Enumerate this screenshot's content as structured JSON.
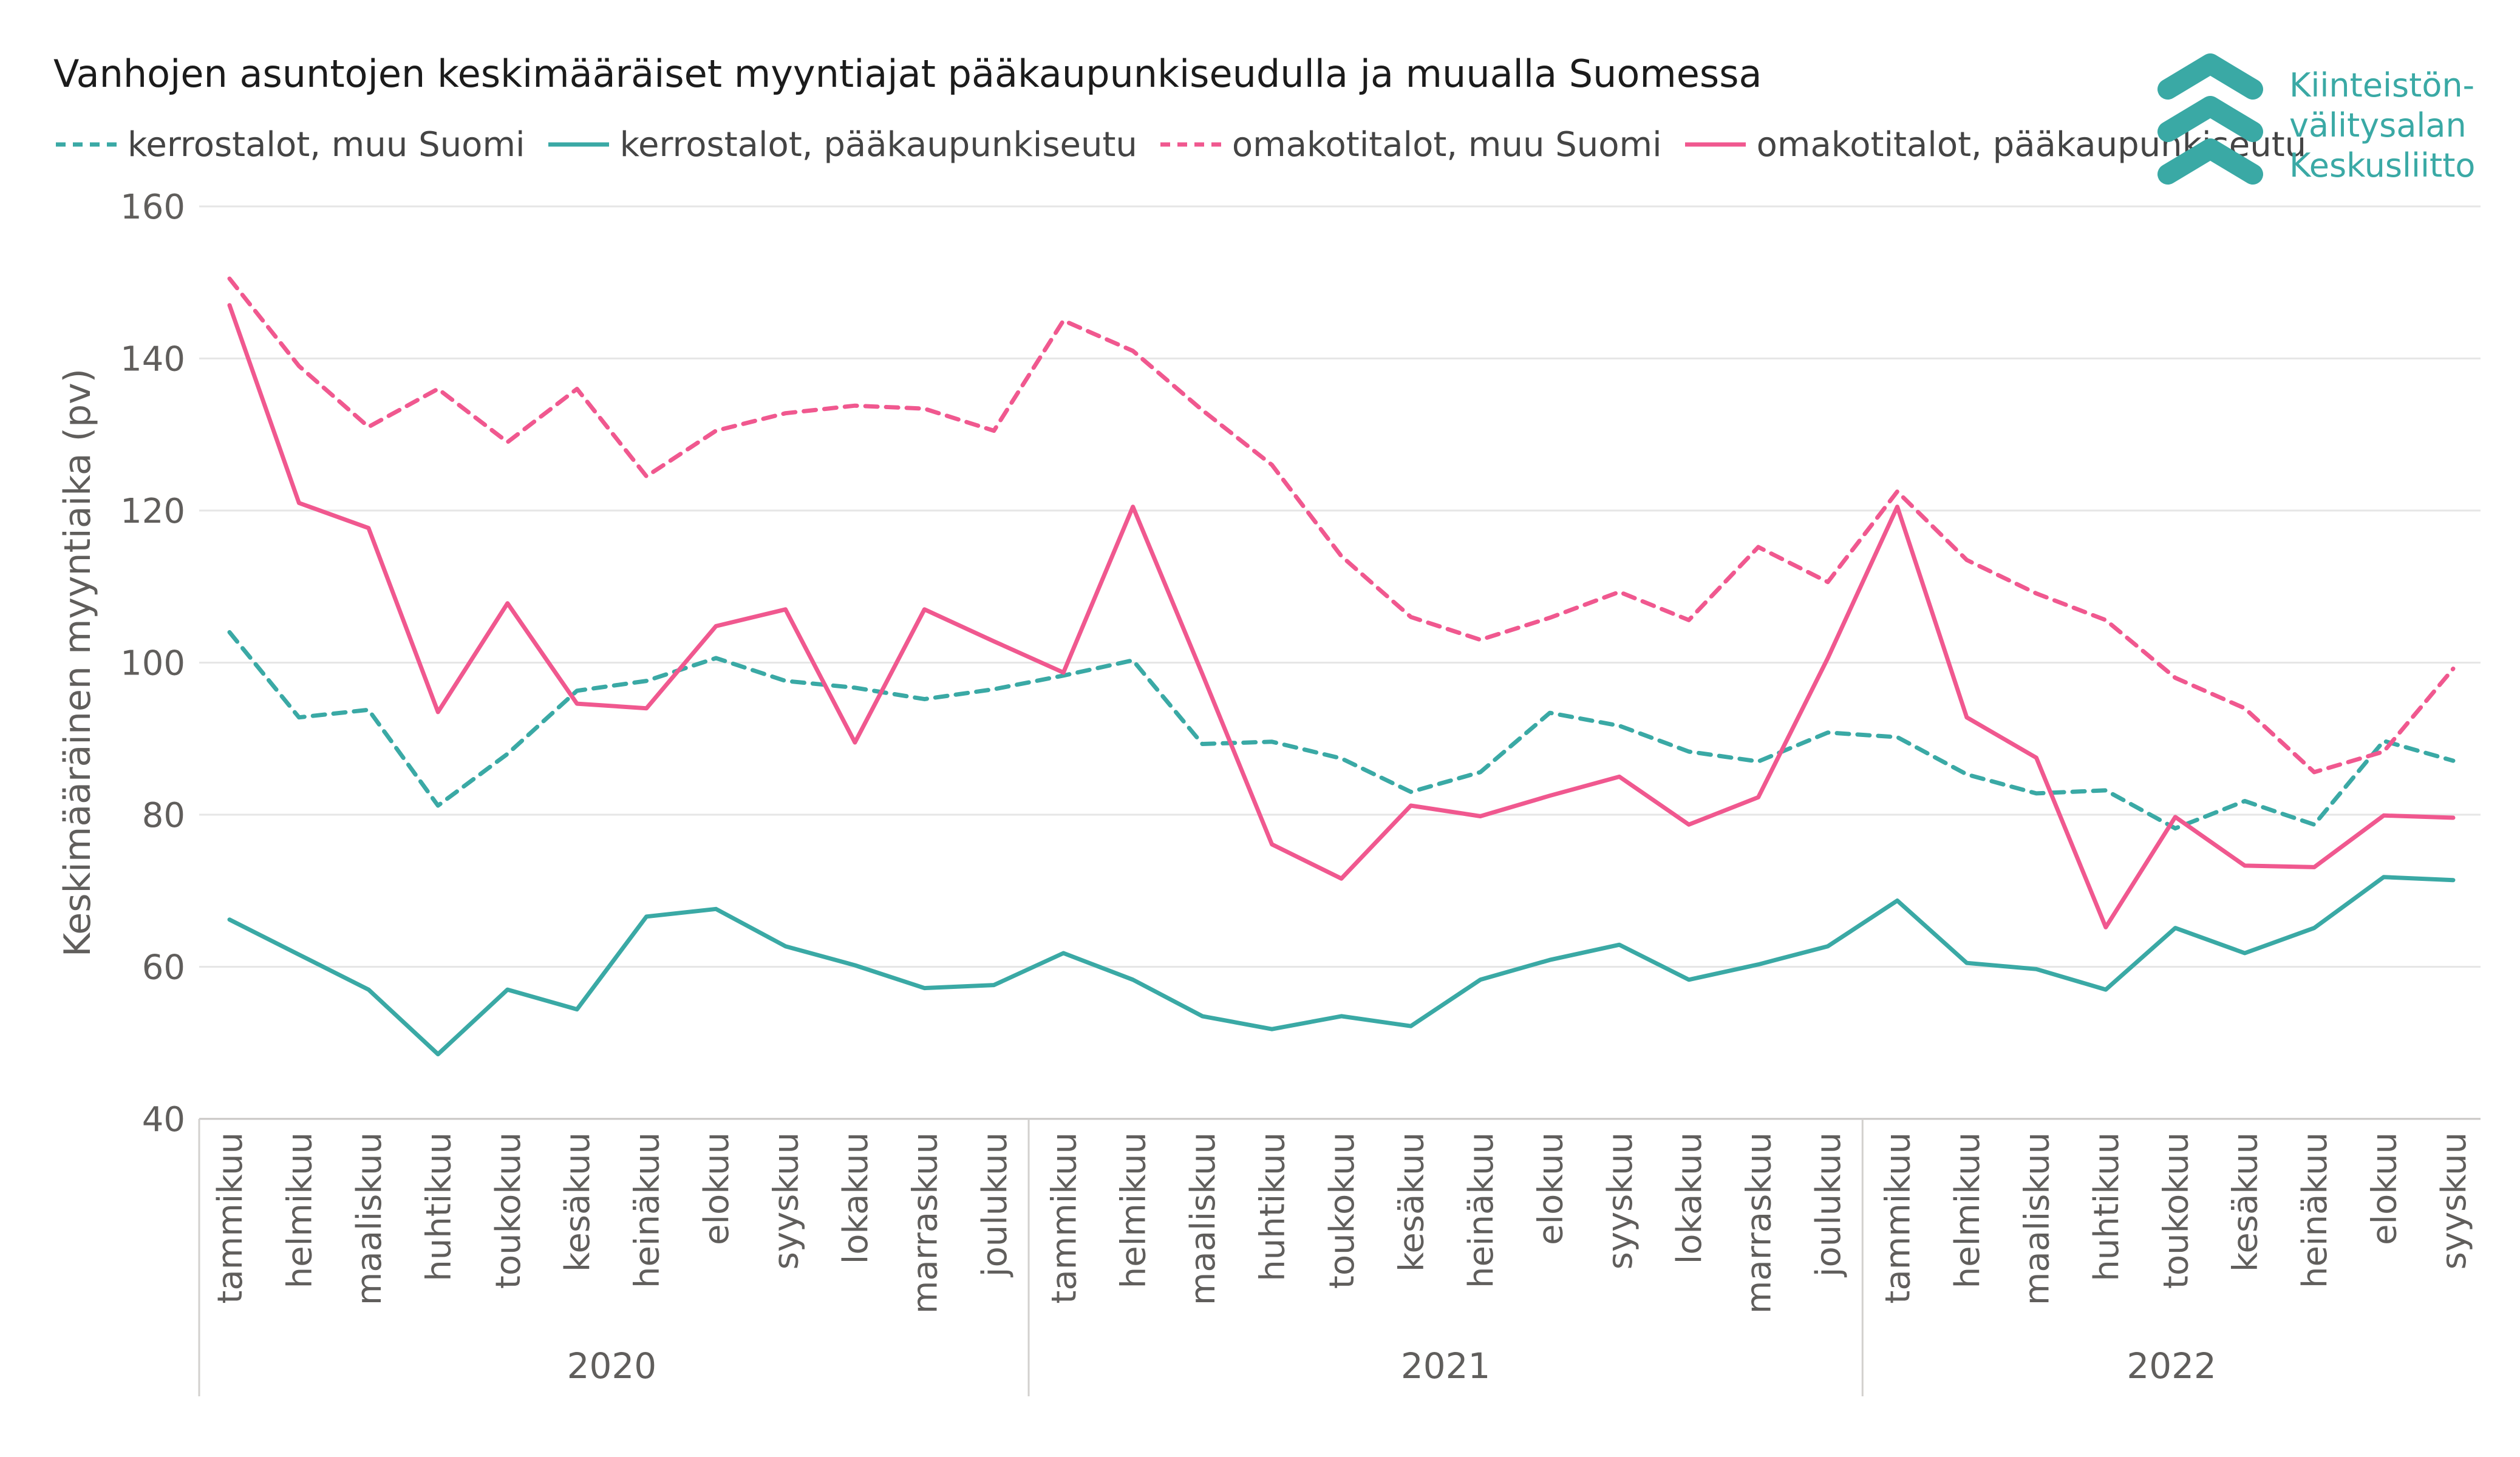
{
  "title": "Vanhojen asuntojen keskimääräiset myyntiajat pääkaupunkiseudulla ja muualla Suomessa",
  "logo": {
    "lines": [
      "Kiinteistön-",
      "välitysalan",
      "Keskusliitto"
    ],
    "color": "#3aa9a5",
    "icon": "chevron-up-stack-icon"
  },
  "chart_data": {
    "type": "line",
    "ylabel": "Keskimääräinen myyntiaika (pv)",
    "xlabel": "",
    "ylim": [
      40,
      160
    ],
    "yticks": [
      40,
      60,
      80,
      100,
      120,
      140,
      160
    ],
    "grid": true,
    "legend_position": "top-left",
    "categories": [
      "tammikuu",
      "helmikuu",
      "maaliskuu",
      "huhtikuu",
      "toukokuu",
      "kesäkuu",
      "heinäkuu",
      "elokuu",
      "syyskuu",
      "lokakuu",
      "marraskuu",
      "joulukuu",
      "tammikuu",
      "helmikuu",
      "maaliskuu",
      "huhtikuu",
      "toukokuu",
      "kesäkuu",
      "heinäkuu",
      "elokuu",
      "syyskuu",
      "lokakuu",
      "marraskuu",
      "joulukuu",
      "tammikuu",
      "helmikuu",
      "maaliskuu",
      "huhtikuu",
      "toukokuu",
      "kesäkuu",
      "heinäkuu",
      "elokuu",
      "syyskuu"
    ],
    "years": [
      {
        "label": "2020",
        "start": 0,
        "count": 12
      },
      {
        "label": "2021",
        "start": 12,
        "count": 12
      },
      {
        "label": "2022",
        "start": 24,
        "count": 9
      }
    ],
    "series": [
      {
        "name": "kerrostalot, muu Suomi",
        "color": "#3aa9a5",
        "dashed": true,
        "values": [
          104,
          92.8,
          93.8,
          81.2,
          88,
          96.3,
          97.6,
          100.6,
          97.6,
          96.7,
          95.2,
          96.5,
          98.3,
          100.3,
          89.3,
          89.6,
          87.4,
          83,
          85.6,
          93.4,
          91.7,
          88.3,
          87,
          90.8,
          90.2,
          85.3,
          82.8,
          83.2,
          78.2,
          81.8,
          78.7,
          89.7,
          87.1
        ]
      },
      {
        "name": "kerrostalot, pääkaupunkiseutu",
        "color": "#3aa9a5",
        "dashed": false,
        "values": [
          66.2,
          61.6,
          57,
          48.5,
          57,
          54.4,
          66.6,
          67.6,
          62.7,
          60.2,
          57.2,
          57.6,
          61.8,
          58.3,
          53.5,
          51.8,
          53.5,
          52.2,
          58.3,
          60.9,
          62.9,
          58.3,
          60.3,
          62.7,
          68.7,
          60.5,
          59.7,
          57,
          65.1,
          61.8,
          65.1,
          71.8,
          71.4
        ]
      },
      {
        "name": "omakotitalot, muu Suomi",
        "color": "#f0588f",
        "dashed": true,
        "values": [
          150.5,
          139,
          131,
          136,
          129,
          136,
          124.5,
          130.5,
          132.8,
          133.8,
          133.4,
          130.5,
          145,
          141,
          133.2,
          126,
          114,
          106,
          103,
          105.9,
          109.3,
          105.6,
          115.2,
          110.6,
          122.5,
          113.5,
          109.1,
          105.6,
          98,
          94,
          85.6,
          88.3,
          99.2
        ]
      },
      {
        "name": "omakotitalot, pääkaupunkiseutu",
        "color": "#f0588f",
        "dashed": false,
        "values": [
          147,
          121,
          117.7,
          93.5,
          107.8,
          94.6,
          94,
          104.8,
          107,
          89.5,
          107,
          102.8,
          98.7,
          120.5,
          98.5,
          76.1,
          71.6,
          81.2,
          79.8,
          82.5,
          85,
          78.7,
          82.3,
          100.6,
          120.5,
          92.8,
          87.5,
          65.2,
          79.7,
          73.3,
          73.1,
          79.9,
          79.6
        ]
      }
    ]
  }
}
